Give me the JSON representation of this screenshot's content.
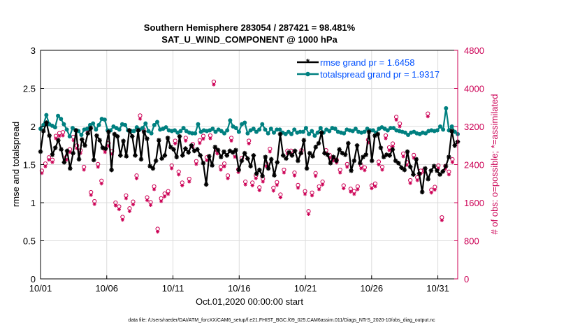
{
  "chart_data": {
    "type": "line",
    "title": "Southern Hemisphere 283054 / 287421 = 98.481%",
    "subtitle": "SAT_U_WIND_COMPONENT @ 1000 hPa",
    "xlabel": "Oct.01,2020 00:00:00 start",
    "ylabel_left": "rmse and totalspread",
    "ylabel_right": "# of obs: o=possible; *=assimilated",
    "footer": "data file: /Users/raeder/DAI/ATM_forcXX/CAM6_setup/f.e21.FHIST_BGC.f09_025.CAM6assim.011/Diags_NTrS_2020-10/obs_diag_output.nc",
    "x_range": [
      1,
      32.5
    ],
    "x_ticks": [
      1,
      6,
      11,
      16,
      21,
      26,
      31
    ],
    "x_tick_labels": [
      "10/01",
      "10/06",
      "10/11",
      "10/16",
      "10/21",
      "10/26",
      "10/31"
    ],
    "ylim_left": [
      0,
      3
    ],
    "y_ticks_left": [
      "0",
      "0.5",
      "1",
      "1.5",
      "2",
      "2.5",
      "3"
    ],
    "ylim_right": [
      0,
      4800
    ],
    "y_ticks_right": [
      "0",
      "800",
      "1600",
      "2400",
      "3200",
      "4000",
      "4800"
    ],
    "legend_position": "top-right",
    "colors": {
      "rmse": "#000000",
      "totalspread": "#008080",
      "obs": "#cc0055",
      "legend_text": "#0050ff"
    },
    "series": [
      {
        "name": "rmse grand pr = 1.6458",
        "axis": "left",
        "values": [
          1.67,
          1.94,
          2.05,
          1.88,
          1.63,
          1.72,
          1.82,
          1.7,
          1.53,
          1.68,
          1.45,
          1.65,
          1.95,
          1.57,
          1.83,
          1.75,
          1.91,
          1.98,
          1.56,
          1.88,
          1.82,
          1.72,
          1.71,
          1.93,
          1.43,
          1.9,
          1.87,
          1.62,
          1.81,
          1.61,
          1.95,
          1.87,
          1.62,
          1.95,
          1.57,
          1.93,
          1.84,
          1.48,
          1.45,
          1.55,
          1.82,
          1.58,
          1.62,
          1.85,
          1.73,
          1.7,
          1.6,
          1.87,
          1.62,
          1.71,
          1.66,
          1.75,
          1.68,
          1.7,
          1.62,
          1.52,
          1.24,
          1.61,
          1.49,
          1.73,
          1.69,
          1.6,
          1.67,
          1.62,
          1.68,
          1.66,
          1.69,
          1.43,
          1.55,
          1.65,
          1.58,
          1.48,
          1.62,
          1.38,
          1.43,
          1.35,
          1.6,
          1.45,
          1.57,
          1.36,
          1.53,
          1.9,
          1.62,
          1.58,
          1.66,
          1.62,
          1.68,
          1.55,
          1.65,
          1.82,
          1.45,
          1.65,
          1.61,
          1.73,
          1.78,
          1.92,
          1.65,
          1.63,
          1.52,
          1.6,
          1.55,
          1.7,
          1.65,
          1.63,
          1.78,
          1.42,
          1.55,
          1.75,
          1.52,
          1.6,
          1.63,
          1.93,
          1.55,
          1.88,
          1.9,
          1.72,
          1.6,
          1.63,
          1.62,
          1.7,
          1.55,
          1.52,
          1.46,
          1.43,
          1.67,
          1.47,
          1.37,
          1.57,
          1.38,
          1.14,
          1.45,
          1.31,
          1.42,
          1.48,
          1.42,
          1.37,
          1.41,
          1.48,
          1.6,
          1.94,
          1.75,
          1.8
        ]
      },
      {
        "name": "totalspread grand pr = 1.9317",
        "axis": "left",
        "values": [
          1.97,
          2.02,
          2.15,
          2.03,
          2.01,
          1.99,
          2.14,
          2.1,
          2.03,
          1.96,
          1.87,
          1.98,
          1.95,
          1.94,
          1.89,
          1.96,
          1.97,
          2.02,
          2.04,
          1.96,
          2.02,
          2.1,
          2.09,
          1.95,
          1.95,
          2.0,
          1.98,
          1.96,
          2.03,
          2.02,
          1.95,
          1.94,
          1.94,
          1.99,
          1.96,
          1.98,
          2.04,
          1.94,
          1.91,
          2.02,
          2.06,
          1.96,
          1.97,
          1.99,
          1.95,
          1.94,
          1.95,
          1.92,
          1.94,
          1.98,
          1.94,
          1.92,
          1.91,
          1.91,
          2.03,
          1.93,
          1.95,
          1.94,
          1.95,
          1.97,
          1.93,
          1.96,
          1.94,
          1.91,
          1.95,
          2.08,
          2.0,
          1.98,
          1.93,
          2.03,
          2.05,
          1.91,
          1.95,
          1.97,
          1.93,
          1.96,
          2.03,
          1.96,
          1.91,
          1.97,
          1.92,
          1.96,
          1.96,
          1.92,
          1.9,
          1.93,
          1.9,
          1.96,
          1.92,
          1.93,
          1.93,
          1.98,
          1.9,
          1.94,
          1.88,
          1.92,
          1.98,
          1.92,
          1.96,
          1.94,
          1.98,
          1.97,
          1.93,
          1.92,
          1.91,
          1.96,
          1.95,
          1.94,
          1.97,
          1.93,
          1.92,
          1.93,
          1.97,
          1.95,
          1.95,
          1.92,
          1.97,
          1.99,
          1.97,
          1.95,
          1.98,
          1.98,
          1.95,
          1.94,
          1.93,
          1.92,
          1.89,
          1.92,
          1.93,
          1.91,
          1.9,
          1.92,
          1.91,
          1.94,
          1.95,
          1.94,
          1.95,
          2.0,
          1.96,
          2.24,
          1.95,
          2.0,
          1.93,
          1.9
        ]
      },
      {
        "name": "obs possible",
        "axis": "right",
        "marker": "circle",
        "values": [
          2270,
          2420,
          2550,
          2500,
          3000,
          3060,
          3080,
          2560,
          2720,
          2980,
          2800,
          2700,
          2350,
          3150,
          1820,
          1630,
          2410,
          2060,
          2720,
          2850,
          2680,
          1600,
          1520,
          1300,
          1750,
          1480,
          1620,
          2170,
          3430,
          3140,
          1710,
          1610,
          1940,
          1050,
          1690,
          1790,
          1840,
          2380,
          2900,
          2250,
          2020,
          2960,
          2100,
          2830,
          2470,
          2910,
          3000,
          2550,
          3010,
          4140,
          2690,
          2350,
          2420,
          2170,
          2960,
          2620,
          2300,
          2540,
          2040,
          2900,
          2020,
          2170,
          1920,
          2100,
          2420,
          2730,
          1910,
          2030,
          1770,
          2290,
          2690,
          2690,
          2230,
          1970,
          2700,
          1840,
          1420,
          1810,
          2220,
          1940,
          2040,
          2700,
          2600,
          2540,
          2500,
          2290,
          1960,
          2410,
          1890,
          1840,
          1940,
          2380,
          2340,
          2920,
          1960,
          2000,
          2460,
          2350,
          3010,
          2760,
          2840,
          3400,
          3260,
          2630,
          2450,
          2070,
          2600,
          2130,
          2270,
          2300,
          3470,
          1870,
          1930,
          2380,
          1290,
          2370,
          2250,
          2510
        ]
      },
      {
        "name": "obs assimilated",
        "axis": "right",
        "marker": "asterisk",
        "values": [
          2220,
          2360,
          2500,
          2450,
          2950,
          3000,
          3010,
          2500,
          2660,
          2910,
          2740,
          2640,
          2290,
          3080,
          1760,
          1570,
          2350,
          2000,
          2660,
          2790,
          2620,
          1540,
          1460,
          1240,
          1690,
          1420,
          1560,
          2110,
          3360,
          3080,
          1650,
          1550,
          1880,
          990,
          1630,
          1730,
          1780,
          2320,
          2840,
          2190,
          1960,
          2900,
          2040,
          2770,
          2410,
          2850,
          2940,
          2490,
          2950,
          4080,
          2630,
          2290,
          2360,
          2110,
          2900,
          2560,
          2240,
          2480,
          1980,
          2840,
          1960,
          2110,
          1860,
          2040,
          2360,
          2670,
          1850,
          1970,
          1710,
          2230,
          2630,
          2630,
          2170,
          1910,
          2640,
          1780,
          1360,
          1750,
          2160,
          1880,
          1980,
          2640,
          2540,
          2480,
          2440,
          2230,
          1900,
          2350,
          1830,
          1780,
          1880,
          2320,
          2280,
          2860,
          1900,
          1940,
          2400,
          2290,
          2950,
          2700,
          2780,
          3340,
          3200,
          2570,
          2390,
          2010,
          2540,
          2070,
          2210,
          2240,
          3410,
          1810,
          1870,
          2320,
          1230,
          2310,
          2190,
          2450
        ]
      }
    ]
  }
}
